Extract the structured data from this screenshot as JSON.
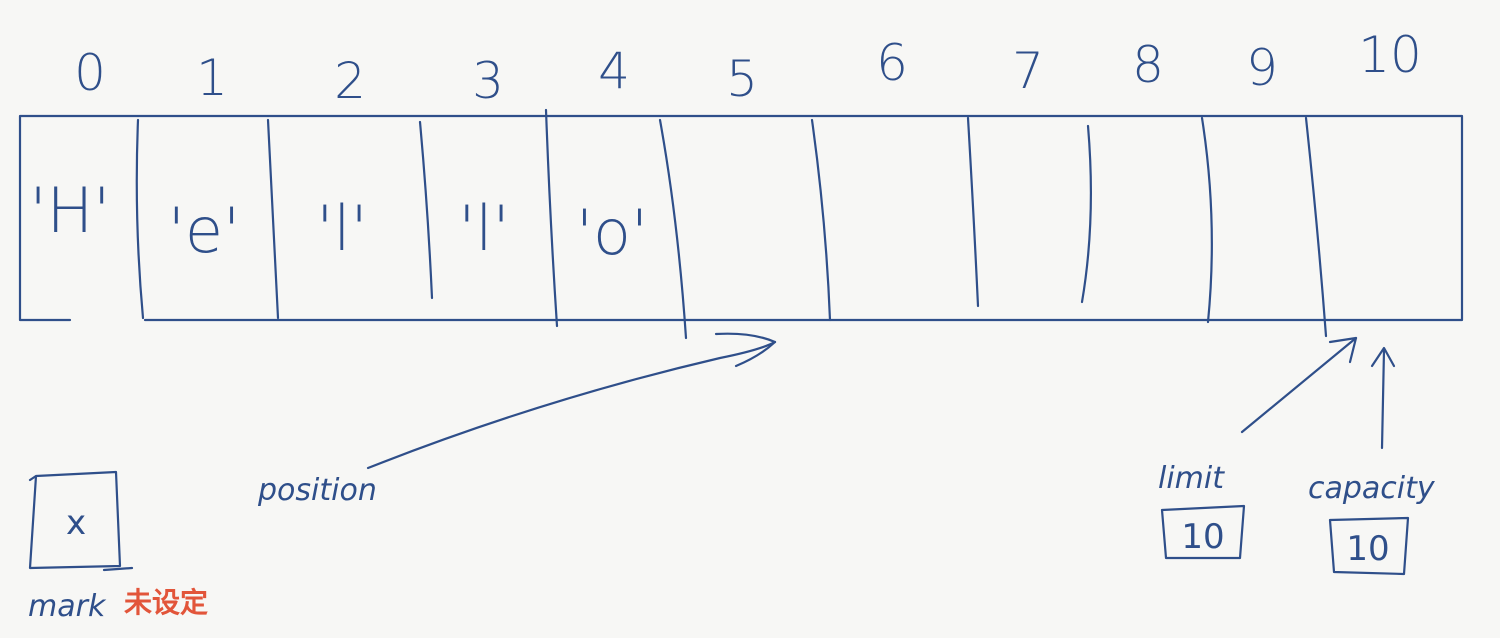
{
  "indices": [
    "0",
    "1",
    "2",
    "3",
    "4",
    "5",
    "6",
    "7",
    "8",
    "9",
    "10"
  ],
  "cells": [
    "'H'",
    "'e'",
    "'l'",
    "'l'",
    "'o'",
    "",
    "",
    "",
    "",
    "",
    ""
  ],
  "labels": {
    "position": "position",
    "limit": "limit",
    "capacity": "capacity",
    "mark": "mark",
    "mark_note": "未设定"
  },
  "values": {
    "limit": "10",
    "capacity": "10",
    "mark": "x"
  },
  "colors": {
    "ink": "#2f4f8a",
    "note": "#e2553a",
    "background": "#f7f7f5"
  }
}
